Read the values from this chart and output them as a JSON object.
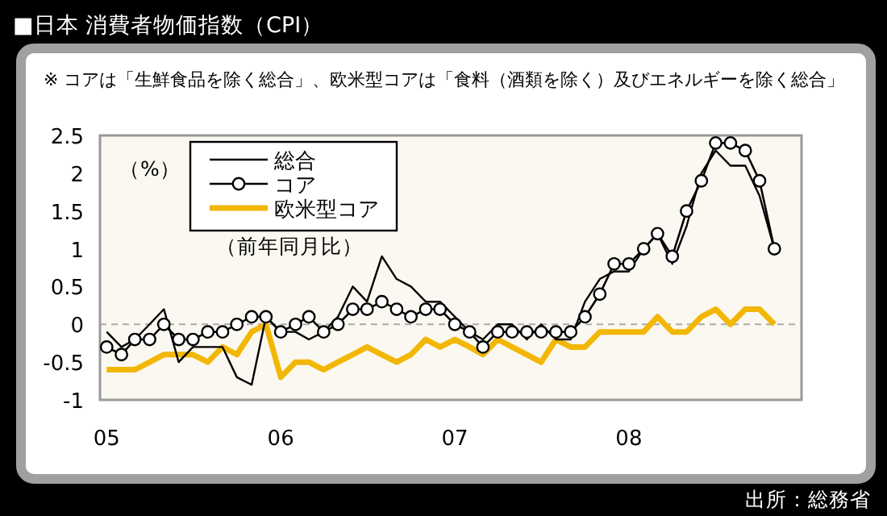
{
  "chart_data": {
    "type": "line",
    "title": "■日本 消費者物価指数（CPI）",
    "subtitle": "※ コアは「生鮮食品を除く総合」、欧米型コアは「食料（酒類を除く）及びエネルギーを除く総合」",
    "ylabel": "（%）",
    "annotations": [
      "（前年同月比）",
      "出所：総務省"
    ],
    "x": [
      "2005-01",
      "2005-02",
      "2005-03",
      "2005-04",
      "2005-05",
      "2005-06",
      "2005-07",
      "2005-08",
      "2005-09",
      "2005-10",
      "2005-11",
      "2005-12",
      "2006-01",
      "2006-02",
      "2006-03",
      "2006-04",
      "2006-05",
      "2006-06",
      "2006-07",
      "2006-08",
      "2006-09",
      "2006-10",
      "2006-11",
      "2006-12",
      "2007-01",
      "2007-02",
      "2007-03",
      "2007-04",
      "2007-05",
      "2007-06",
      "2007-07",
      "2007-08",
      "2007-09",
      "2007-10",
      "2007-11",
      "2007-12",
      "2008-01",
      "2008-02",
      "2008-03",
      "2008-04",
      "2008-05",
      "2008-06",
      "2008-07",
      "2008-08",
      "2008-09",
      "2008-10",
      "2008-11"
    ],
    "series": [
      {
        "name": "総合",
        "color": "#000000",
        "values": [
          -0.1,
          -0.3,
          -0.2,
          0.0,
          0.2,
          -0.5,
          -0.3,
          -0.3,
          -0.3,
          -0.7,
          -0.8,
          0.1,
          -0.1,
          -0.1,
          -0.2,
          -0.1,
          0.1,
          0.5,
          0.3,
          0.9,
          0.6,
          0.5,
          0.3,
          0.3,
          0.1,
          -0.1,
          -0.2,
          0.0,
          0.0,
          -0.2,
          0.0,
          -0.2,
          -0.2,
          0.3,
          0.6,
          0.7,
          0.7,
          1.0,
          1.2,
          0.8,
          1.3,
          2.0,
          2.3,
          2.1,
          2.1,
          1.7,
          1.0
        ]
      },
      {
        "name": "コア",
        "color": "#000000",
        "marker": "circle",
        "values": [
          -0.3,
          -0.4,
          -0.2,
          -0.2,
          0.0,
          -0.2,
          -0.2,
          -0.1,
          -0.1,
          0.0,
          0.1,
          0.1,
          -0.1,
          0.0,
          0.1,
          -0.1,
          0.0,
          0.2,
          0.2,
          0.3,
          0.2,
          0.1,
          0.2,
          0.2,
          0.0,
          -0.1,
          -0.3,
          -0.1,
          -0.1,
          -0.1,
          -0.1,
          -0.1,
          -0.1,
          0.1,
          0.4,
          0.8,
          0.8,
          1.0,
          1.2,
          0.9,
          1.5,
          1.9,
          2.4,
          2.4,
          2.3,
          1.9,
          1.0
        ]
      },
      {
        "name": "欧米型コア",
        "color": "#f2b705",
        "values": [
          -0.6,
          -0.6,
          -0.6,
          -0.5,
          -0.4,
          -0.4,
          -0.4,
          -0.5,
          -0.3,
          -0.4,
          -0.1,
          0.0,
          -0.7,
          -0.5,
          -0.5,
          -0.6,
          -0.5,
          -0.4,
          -0.3,
          -0.4,
          -0.5,
          -0.4,
          -0.2,
          -0.3,
          -0.2,
          -0.3,
          -0.4,
          -0.2,
          -0.3,
          -0.4,
          -0.5,
          -0.2,
          -0.3,
          -0.3,
          -0.1,
          -0.1,
          -0.1,
          -0.1,
          0.1,
          -0.1,
          -0.1,
          0.1,
          0.2,
          0.0,
          0.2,
          0.2,
          0.0
        ]
      }
    ],
    "xlim": [
      "2004-12-18",
      "2008-12-28"
    ],
    "xticks": [
      {
        "value": "2005-01",
        "label": "05"
      },
      {
        "value": "2006-01",
        "label": "06"
      },
      {
        "value": "2007-01",
        "label": "07"
      },
      {
        "value": "2008-01",
        "label": "08"
      }
    ],
    "ylim": [
      -1,
      2.5
    ],
    "yticks": [
      -1,
      -0.5,
      0,
      0.5,
      1,
      1.5,
      2,
      2.5
    ],
    "ref_lines": [
      {
        "axis": "y",
        "value": 0,
        "color": "#aaaaaa",
        "line_style": "dashed"
      }
    ],
    "legend": "top left"
  }
}
